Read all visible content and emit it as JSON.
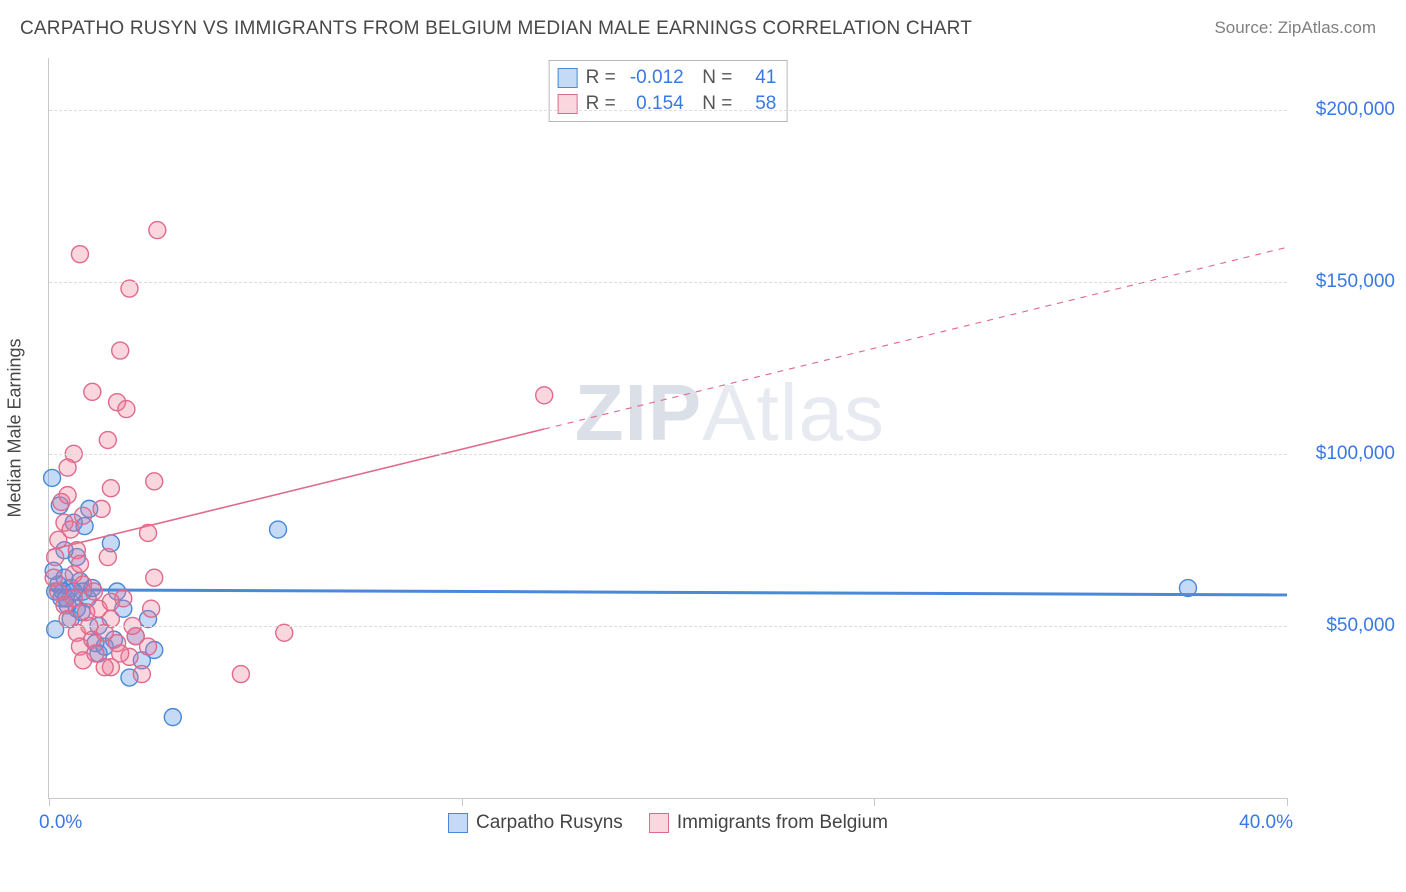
{
  "title": "CARPATHO RUSYN VS IMMIGRANTS FROM BELGIUM MEDIAN MALE EARNINGS CORRELATION CHART",
  "source": "Source: ZipAtlas.com",
  "watermark_bold": "ZIP",
  "watermark_rest": "Atlas",
  "chart": {
    "type": "scatter",
    "ylabel": "Median Male Earnings",
    "xlim": [
      0,
      40
    ],
    "ylim": [
      0,
      215000
    ],
    "xaxis_label_left": "0.0%",
    "xaxis_label_right": "40.0%",
    "xticks_at": [
      0,
      13.33,
      26.67,
      40
    ],
    "yticks": [
      {
        "v": 50000,
        "label": "$50,000"
      },
      {
        "v": 100000,
        "label": "$100,000"
      },
      {
        "v": 150000,
        "label": "$150,000"
      },
      {
        "v": 200000,
        "label": "$200,000"
      }
    ],
    "grid_color": "#dddddd",
    "colors": {
      "blue_fill": "rgba(90,150,230,0.35)",
      "blue_stroke": "#4a88d8",
      "pink_fill": "rgba(240,120,150,0.30)",
      "pink_stroke": "#e06a8c"
    },
    "marker_radius": 8.5,
    "marker_stroke_width": 1.4,
    "series": [
      {
        "name": "Carpatho Rusyns",
        "color_key": "blue",
        "R": "-0.012",
        "N": "41",
        "trend": {
          "x1": 0,
          "y1": 60500,
          "x2": 40,
          "y2": 59000,
          "solid_until_x": 40,
          "width": 3
        },
        "points": [
          [
            0.1,
            93000
          ],
          [
            0.2,
            60000
          ],
          [
            0.3,
            62000
          ],
          [
            0.4,
            58000
          ],
          [
            0.5,
            64000
          ],
          [
            0.6,
            56000
          ],
          [
            0.7,
            61000
          ],
          [
            0.8,
            80000
          ],
          [
            0.9,
            55000
          ],
          [
            1.0,
            63000
          ],
          [
            0.35,
            85000
          ],
          [
            0.2,
            49000
          ],
          [
            0.45,
            60000
          ],
          [
            0.15,
            66000
          ],
          [
            0.55,
            58000
          ],
          [
            0.7,
            52000
          ],
          [
            1.1,
            60000
          ],
          [
            1.3,
            84000
          ],
          [
            1.5,
            45000
          ],
          [
            1.6,
            42000
          ],
          [
            1.8,
            44000
          ],
          [
            2.0,
            74000
          ],
          [
            2.2,
            60000
          ],
          [
            2.4,
            55000
          ],
          [
            1.15,
            79000
          ],
          [
            0.9,
            70000
          ],
          [
            1.05,
            54000
          ],
          [
            1.25,
            58000
          ],
          [
            1.4,
            61000
          ],
          [
            1.6,
            50000
          ],
          [
            2.1,
            46000
          ],
          [
            2.6,
            35000
          ],
          [
            2.8,
            47000
          ],
          [
            3.0,
            40000
          ],
          [
            3.2,
            52000
          ],
          [
            3.4,
            43000
          ],
          [
            4.0,
            23500
          ],
          [
            7.4,
            78000
          ],
          [
            36.8,
            61000
          ],
          [
            0.5,
            72000
          ],
          [
            0.8,
            60000
          ]
        ]
      },
      {
        "name": "Immigrants from Belgium",
        "color_key": "pink",
        "R": "0.154",
        "N": "58",
        "trend": {
          "x1": 0,
          "y1": 72000,
          "x2": 40,
          "y2": 160000,
          "solid_until_x": 16,
          "width": 1.6
        },
        "points": [
          [
            0.2,
            70000
          ],
          [
            0.3,
            75000
          ],
          [
            0.4,
            86000
          ],
          [
            0.5,
            80000
          ],
          [
            0.6,
            88000
          ],
          [
            0.7,
            78000
          ],
          [
            0.8,
            65000
          ],
          [
            0.9,
            72000
          ],
          [
            1.0,
            68000
          ],
          [
            1.1,
            62000
          ],
          [
            0.3,
            60000
          ],
          [
            0.5,
            56000
          ],
          [
            0.6,
            52000
          ],
          [
            0.8,
            58000
          ],
          [
            0.9,
            48000
          ],
          [
            1.0,
            44000
          ],
          [
            1.1,
            40000
          ],
          [
            1.3,
            50000
          ],
          [
            1.4,
            46000
          ],
          [
            1.5,
            42000
          ],
          [
            1.6,
            55000
          ],
          [
            1.8,
            48000
          ],
          [
            2.0,
            52000
          ],
          [
            2.2,
            45000
          ],
          [
            2.4,
            58000
          ],
          [
            2.6,
            41000
          ],
          [
            2.8,
            47000
          ],
          [
            3.0,
            36000
          ],
          [
            3.2,
            44000
          ],
          [
            1.0,
            158000
          ],
          [
            1.9,
            104000
          ],
          [
            2.6,
            148000
          ],
          [
            3.5,
            165000
          ],
          [
            2.0,
            90000
          ],
          [
            2.2,
            115000
          ],
          [
            2.3,
            130000
          ],
          [
            2.5,
            113000
          ],
          [
            1.4,
            118000
          ],
          [
            0.8,
            100000
          ],
          [
            0.6,
            96000
          ],
          [
            6.2,
            36000
          ],
          [
            7.6,
            48000
          ],
          [
            3.4,
            92000
          ],
          [
            3.2,
            77000
          ],
          [
            3.4,
            64000
          ],
          [
            16.0,
            117000
          ],
          [
            1.7,
            84000
          ],
          [
            1.9,
            70000
          ],
          [
            1.2,
            54000
          ],
          [
            1.45,
            60000
          ],
          [
            2.0,
            38000
          ],
          [
            2.3,
            42000
          ],
          [
            2.7,
            50000
          ],
          [
            3.3,
            55000
          ],
          [
            1.8,
            38000
          ],
          [
            2.0,
            57000
          ],
          [
            1.1,
            82000
          ],
          [
            0.15,
            64000
          ]
        ]
      }
    ]
  }
}
